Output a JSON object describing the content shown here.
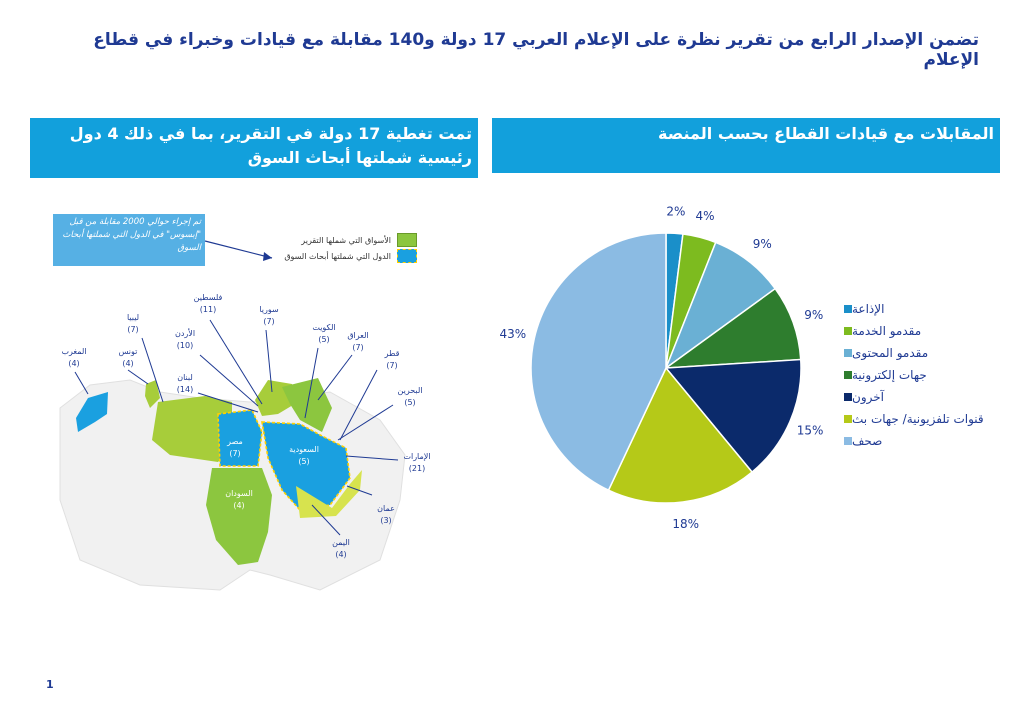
{
  "title": "تضمن الإصدار الرابع من تقرير نظرة على الإعلام العربي 17 دولة و140 مقابلة مع قيادات وخبراء في قطاع الإعلام",
  "left_panel": {
    "header": "تمت تغطية 17 دولة في التقرير، بما في ذلك 4 دول رئيسية شملتها أبحاث السوق",
    "note": "تم إجراء حوالي 2000 مقابلة من قبل \"إبسوس\" في الدول التي شملتها أبحاث السوق",
    "legend": [
      {
        "label": "الأسواق التي شملها التقرير",
        "color": "#8cc63f"
      },
      {
        "label": "الدول التي شملتها أبحاث السوق",
        "color": "#1aa0e0"
      }
    ],
    "countries": [
      {
        "name": "المغرب",
        "count": "(4)"
      },
      {
        "name": "تونس",
        "count": "(4)"
      },
      {
        "name": "ليبيا",
        "count": "(7)"
      },
      {
        "name": "فلسطين",
        "count": "(11)"
      },
      {
        "name": "الأردن",
        "count": "(10)"
      },
      {
        "name": "لبنان",
        "count": "(14)"
      },
      {
        "name": "سوريا",
        "count": "(7)"
      },
      {
        "name": "الكويت",
        "count": "(5)"
      },
      {
        "name": "العراق",
        "count": "(7)"
      },
      {
        "name": "قطر",
        "count": "(7)"
      },
      {
        "name": "البحرين",
        "count": "(5)"
      },
      {
        "name": "الإمارات",
        "count": "(21)"
      },
      {
        "name": "عمان",
        "count": "(3)"
      },
      {
        "name": "اليمن",
        "count": "(4)"
      },
      {
        "name": "مصر",
        "count": "(7)"
      },
      {
        "name": "السعودية",
        "count": "(5)"
      },
      {
        "name": "السودان",
        "count": "(4)"
      }
    ]
  },
  "right_panel": {
    "header": "المقابلات مع قيادات القطاع بحسب المنصة"
  },
  "chart_data": {
    "type": "pie",
    "title": "",
    "slices": [
      {
        "label": "الإذاعة",
        "value": 2,
        "display": "2%",
        "color": "#1a8fc9"
      },
      {
        "label": "مقدمو الخدمة",
        "value": 4,
        "display": "4%",
        "color": "#7dbb1f"
      },
      {
        "label": "مقدمو المحتوى",
        "value": 9,
        "display": "9%",
        "color": "#6ab0d4"
      },
      {
        "label": "جهات إلكترونية",
        "value": 9,
        "display": "9%",
        "color": "#2e7d2e"
      },
      {
        "label": "آخرون",
        "value": 15,
        "display": "15%",
        "color": "#0b2a6b"
      },
      {
        "label": "قنوات تلفزيونية/ جهات بث",
        "value": 18,
        "display": "18%",
        "color": "#b5c918"
      },
      {
        "label": "صحف",
        "value": 43,
        "display": "43%",
        "color": "#8bbbe3"
      }
    ],
    "legend_position": "right"
  },
  "page_number": "1"
}
